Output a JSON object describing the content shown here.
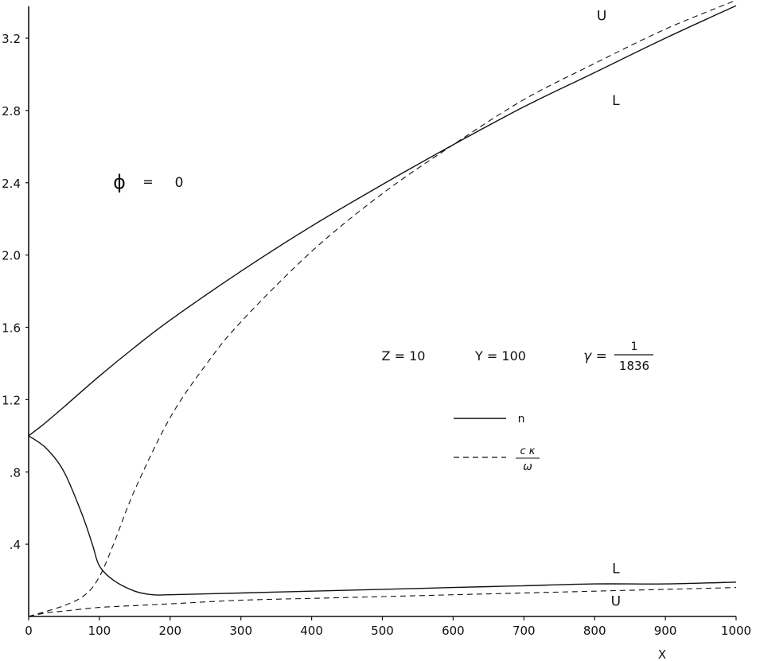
{
  "chart_data": {
    "type": "line",
    "xlabel": "X",
    "ylabel": "",
    "xlim": [
      0,
      1000
    ],
    "ylim": [
      0,
      3.3
    ],
    "x_ticks": [
      0,
      100,
      200,
      300,
      400,
      500,
      600,
      700,
      800,
      900,
      1000
    ],
    "x_tick_labels": [
      "0",
      "100",
      "200",
      "300",
      "400",
      "500",
      "600",
      "700",
      "800",
      "900",
      "1000"
    ],
    "y_ticks": [
      0.4,
      0.8,
      1.2,
      1.6,
      2.0,
      2.4,
      2.8,
      3.2
    ],
    "y_tick_labels": [
      ".4",
      ".8",
      "1.2",
      "1.6",
      "2.0",
      "2.4",
      "2.8",
      "3.2"
    ],
    "grid": false,
    "legend": {
      "placement": "center-right",
      "entries": [
        {
          "label": "n",
          "style": "solid"
        },
        {
          "label_numerator": "c κ",
          "label_denominator": "ω",
          "style": "dashed"
        }
      ]
    },
    "annotations": {
      "phi": {
        "symbol": "ϕ",
        "equals": "=",
        "value": "0"
      },
      "params": {
        "z": "Z = 10",
        "y": "Y = 100",
        "gamma_symbol": "γ =",
        "gamma_numerator": "1",
        "gamma_denominator": "1836"
      }
    },
    "series": [
      {
        "label": "U",
        "style": "solid",
        "x": [
          0,
          20,
          50,
          100,
          150,
          200,
          300,
          400,
          500,
          600,
          700,
          800,
          900,
          1000
        ],
        "y": [
          1.0,
          1.06,
          1.16,
          1.33,
          1.49,
          1.64,
          1.91,
          2.16,
          2.39,
          2.61,
          2.82,
          3.01,
          3.2,
          3.38
        ]
      },
      {
        "label": "L",
        "style": "dashed",
        "x": [
          0,
          50,
          80,
          100,
          120,
          150,
          200,
          250,
          300,
          400,
          500,
          600,
          700,
          800,
          900,
          1000
        ],
        "y": [
          0.0,
          0.06,
          0.12,
          0.22,
          0.4,
          0.7,
          1.1,
          1.39,
          1.63,
          2.02,
          2.34,
          2.61,
          2.86,
          3.06,
          3.25,
          3.41
        ]
      },
      {
        "label": "L",
        "style": "solid",
        "x": [
          0,
          25,
          50,
          75,
          90,
          100,
          120,
          150,
          175,
          200,
          300,
          400,
          500,
          600,
          700,
          800,
          900,
          1000
        ],
        "y": [
          1.0,
          0.93,
          0.8,
          0.57,
          0.4,
          0.28,
          0.2,
          0.14,
          0.12,
          0.12,
          0.13,
          0.14,
          0.15,
          0.16,
          0.17,
          0.18,
          0.18,
          0.19
        ]
      },
      {
        "label": "U",
        "style": "dashed",
        "x": [
          0,
          25,
          50,
          100,
          150,
          200,
          300,
          400,
          500,
          600,
          700,
          800,
          900,
          1000
        ],
        "y": [
          0.0,
          0.02,
          0.03,
          0.05,
          0.06,
          0.07,
          0.09,
          0.1,
          0.11,
          0.12,
          0.13,
          0.14,
          0.15,
          0.16
        ]
      }
    ],
    "curve_labels": [
      {
        "text": "U",
        "x": 810,
        "y": 3.3
      },
      {
        "text": "L",
        "x": 830,
        "y": 2.83
      },
      {
        "text": "L",
        "x": 830,
        "y": 0.24
      },
      {
        "text": "U",
        "x": 830,
        "y": 0.06
      }
    ]
  }
}
